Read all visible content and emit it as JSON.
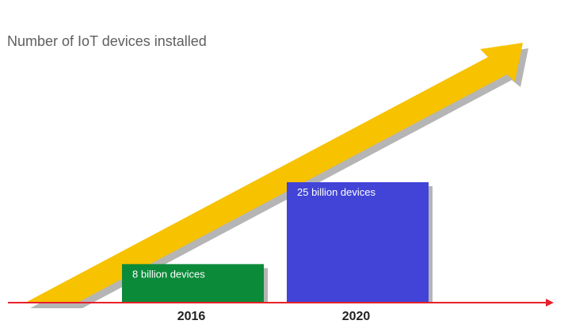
{
  "chart_data": {
    "type": "bar",
    "title": "Number of IoT devices installed",
    "categories": [
      "2016",
      "2020"
    ],
    "values": [
      8,
      25
    ],
    "data_labels": [
      "8 billion devices",
      "25 billion devices"
    ],
    "unit": "billion devices",
    "ylim": [
      0,
      25
    ],
    "grid": false,
    "legend": "none",
    "colors": {
      "bars": [
        "#0b8a3a",
        "#4144d6"
      ],
      "trend_arrow": "#f7c200",
      "shadow": "#b5b5b5",
      "axis": "#e8202a",
      "title": "#5f5f5f",
      "tick_label": "#222222",
      "bar_label": "#ffffff"
    }
  }
}
